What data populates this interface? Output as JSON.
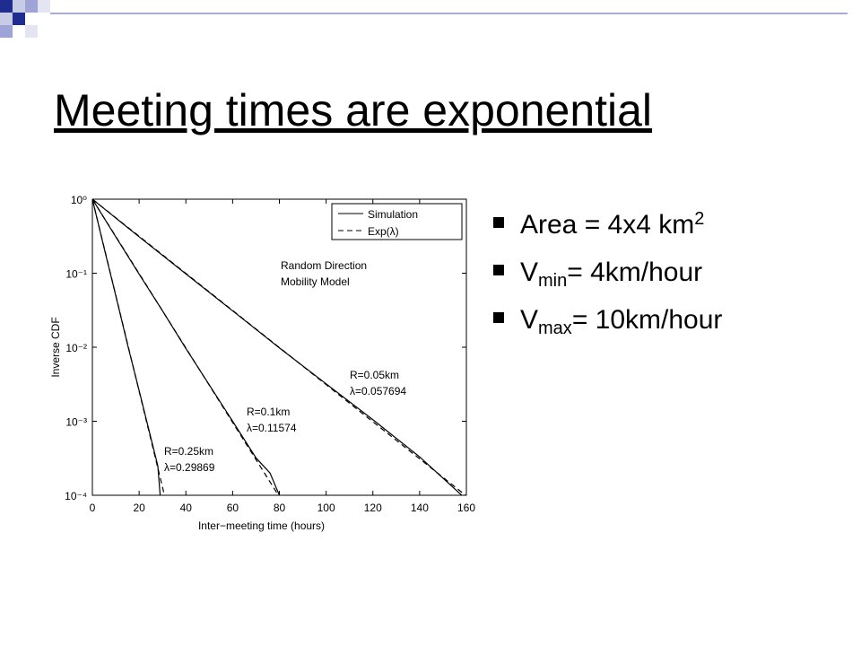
{
  "slide": {
    "title": "Meeting times are exponential",
    "bullets": [
      [
        {
          "text": "Area = 4x4 km",
          "style": "normal"
        },
        {
          "text": "2",
          "style": "sup"
        }
      ],
      [
        {
          "text": "V",
          "style": "normal"
        },
        {
          "text": "min",
          "style": "sub"
        },
        {
          "text": "= 4km/hour",
          "style": "normal"
        }
      ],
      [
        {
          "text": "V",
          "style": "normal"
        },
        {
          "text": "max",
          "style": "sub"
        },
        {
          "text": "= 10km/hour",
          "style": "normal"
        }
      ]
    ]
  },
  "chart_data": {
    "type": "line",
    "xlabel": "Inter−meeting time (hours)",
    "ylabel": "Inverse CDF",
    "yscale": "log",
    "grid": false,
    "legend_position": "upper right",
    "xlim": [
      0,
      160
    ],
    "ylim": [
      0.0001,
      1
    ],
    "xticks": [
      0,
      20,
      40,
      60,
      80,
      100,
      120,
      140,
      160
    ],
    "yticks": [
      {
        "value": 1,
        "label": "10⁰"
      },
      {
        "value": 0.1,
        "label": "10⁻¹"
      },
      {
        "value": 0.01,
        "label": "10⁻²"
      },
      {
        "value": 0.001,
        "label": "10⁻³"
      },
      {
        "value": 0.0001,
        "label": "10⁻⁴"
      }
    ],
    "legend": [
      {
        "label": "Simulation",
        "dash": "solid"
      },
      {
        "label": "Exp(λ)",
        "dash": "dashed"
      }
    ],
    "annotations": [
      [
        "Random Direction",
        "Mobility Model"
      ],
      [
        "R=0.05km",
        "λ=0.057694"
      ],
      [
        "R=0.1km",
        "λ=0.11574"
      ],
      [
        "R=0.25km",
        "λ=0.29869"
      ]
    ],
    "series": [
      {
        "dash": "solid",
        "color": "#000000",
        "x": [
          0,
          20,
          40,
          60,
          80,
          100,
          120,
          140,
          158
        ],
        "values": [
          1,
          0.31,
          0.098,
          0.031,
          0.0098,
          0.0032,
          0.00105,
          0.00033,
          0.0001
        ]
      },
      {
        "dash": "dashed",
        "color": "#000000",
        "x": [
          0,
          20,
          40,
          60,
          80,
          100,
          120,
          140,
          160
        ],
        "values": [
          1,
          0.3154,
          0.09948,
          0.03138,
          0.009898,
          0.003122,
          0.000985,
          0.0003107,
          9.8e-05
        ]
      },
      {
        "dash": "solid",
        "color": "#000000",
        "x": [
          0,
          10,
          20,
          30,
          40,
          50,
          60,
          70,
          76,
          80
        ],
        "values": [
          1,
          0.31,
          0.097,
          0.031,
          0.0096,
          0.0031,
          0.001,
          0.00032,
          0.0002,
          0.0001
        ]
      },
      {
        "dash": "dashed",
        "color": "#000000",
        "x": [
          0,
          10,
          20,
          30,
          40,
          50,
          60,
          70,
          80
        ],
        "values": [
          1,
          0.3143,
          0.0988,
          0.03105,
          0.00976,
          0.003067,
          0.000964,
          0.000303,
          9.53e-05
        ]
      },
      {
        "dash": "solid",
        "color": "#000000",
        "x": [
          0,
          5,
          10,
          15,
          20,
          25,
          28,
          29
        ],
        "values": [
          1,
          0.22,
          0.05,
          0.011,
          0.0026,
          0.0006,
          0.00025,
          0.0001
        ]
      },
      {
        "dash": "dashed",
        "color": "#000000",
        "x": [
          0,
          5,
          10,
          15,
          20,
          25,
          30,
          31
        ],
        "values": [
          1,
          0.2246,
          0.05045,
          0.01133,
          0.002545,
          0.000572,
          0.0001284,
          9.53e-05
        ]
      }
    ]
  }
}
